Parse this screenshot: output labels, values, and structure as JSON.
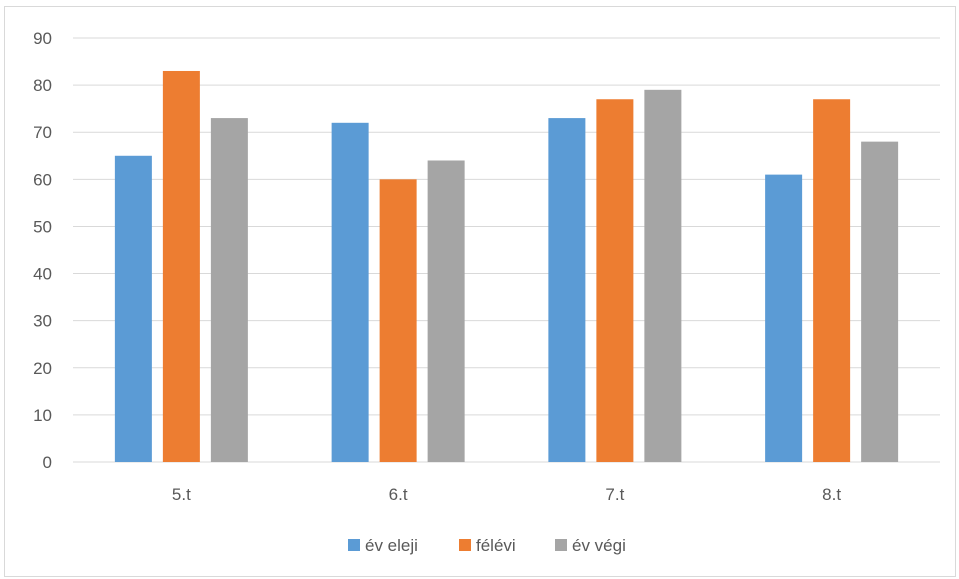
{
  "chart_data": {
    "type": "bar",
    "title": "",
    "xlabel": "",
    "ylabel": "",
    "categories": [
      "5.t",
      "6.t",
      "7.t",
      "8.t"
    ],
    "ylim": [
      0,
      90
    ],
    "yticks": [
      0,
      10,
      20,
      30,
      40,
      50,
      60,
      70,
      80,
      90
    ],
    "grid": true,
    "legend_position": "bottom",
    "series": [
      {
        "name": "év eleji",
        "color": "#5b9bd5",
        "values": [
          65,
          72,
          73,
          61
        ]
      },
      {
        "name": "félévi",
        "color": "#ed7d31",
        "values": [
          83,
          60,
          77,
          77
        ]
      },
      {
        "name": "év végi",
        "color": "#a5a5a5",
        "values": [
          73,
          64,
          79,
          68
        ]
      }
    ]
  }
}
